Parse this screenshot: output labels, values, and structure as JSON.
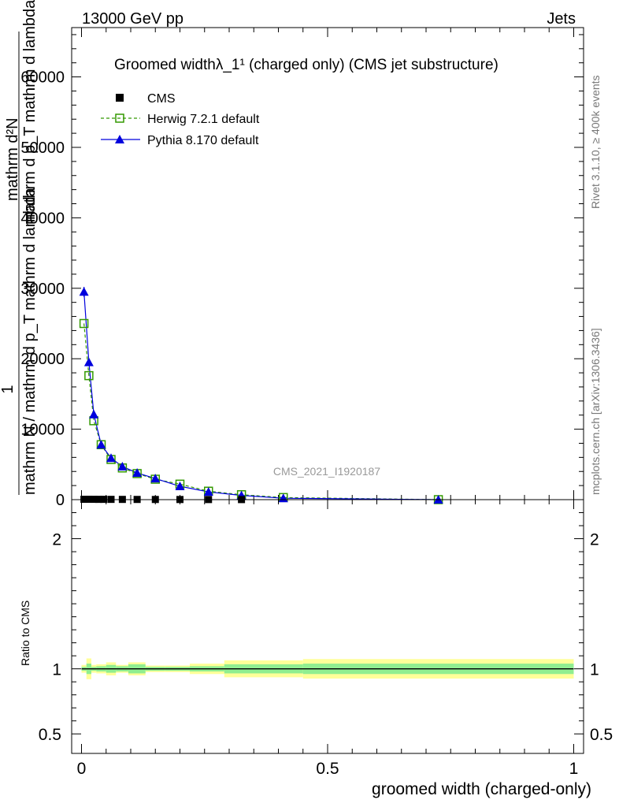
{
  "header": {
    "left": "13000 GeV pp",
    "right": "Jets"
  },
  "side_labels": {
    "rivet": "Rivet 3.1.10, ≥ 400k events",
    "site": "mcplots.cern.ch [arXiv:1306.3436]"
  },
  "watermark": "CMS_2021_I1920187",
  "colors": {
    "cms": "#000000",
    "herwig": "#339900",
    "pythia": "#0000dd",
    "band_outer": "#ffff99",
    "band_inner": "#90ee90"
  },
  "chart_data": [
    {
      "type": "scatter",
      "panel": "main",
      "title": "Groomed widthλ_1¹ (charged only) (CMS jet substructure)",
      "ylabel_line1": "1",
      "ylabel_line2": "mathrm N / mathrm d p_T mathrm d lambda",
      "ylabel_line3": "mathrm d²N",
      "ylabel_line4": "mathrm d p_T mathrm d lambda",
      "xlim": [
        -0.02,
        1.02
      ],
      "ylim": [
        0,
        67000
      ],
      "yticks": [
        0,
        10000,
        20000,
        30000,
        40000,
        50000,
        60000
      ],
      "ytick_labels": [
        "0",
        "10000",
        "20000",
        "30000",
        "40000",
        "50000",
        "60000"
      ],
      "legend_position": "top-left",
      "series": [
        {
          "name": "CMS",
          "style": "marker",
          "x": [
            0.005,
            0.015,
            0.025,
            0.035,
            0.045,
            0.06,
            0.083,
            0.113,
            0.15,
            0.2,
            0.258,
            0.325
          ],
          "values": [
            50,
            55,
            50,
            45,
            45,
            40,
            35,
            30,
            25,
            20,
            15,
            10
          ]
        },
        {
          "name": "Herwig 7.2.1 default",
          "style": "dashed-open-square",
          "x": [
            0.005,
            0.015,
            0.025,
            0.04,
            0.06,
            0.083,
            0.113,
            0.15,
            0.2,
            0.258,
            0.325,
            0.41,
            0.725
          ],
          "values": [
            25000,
            17600,
            11200,
            7800,
            5700,
            4500,
            3700,
            2900,
            2200,
            1200,
            700,
            300,
            0
          ]
        },
        {
          "name": "Pythia 8.170 default",
          "style": "solid-triangle",
          "x": [
            0.005,
            0.015,
            0.025,
            0.04,
            0.06,
            0.083,
            0.113,
            0.15,
            0.2,
            0.258,
            0.325,
            0.41,
            0.725
          ],
          "values": [
            29500,
            19500,
            12100,
            7800,
            5900,
            4700,
            3800,
            3000,
            1900,
            1100,
            600,
            200,
            0
          ]
        }
      ]
    },
    {
      "type": "area",
      "panel": "ratio",
      "xlabel": "groomed width (charged-only)",
      "ylabel": "Ratio to CMS",
      "xlim": [
        -0.02,
        1.02
      ],
      "ylim": [
        0.35,
        2.3
      ],
      "xticks": [
        0,
        0.5,
        1
      ],
      "xtick_labels": [
        "0",
        "0.5",
        "1"
      ],
      "yticks": [
        0.5,
        1,
        2
      ],
      "ytick_labels": [
        "0.5",
        "1",
        "2"
      ],
      "bins": [
        {
          "x0": 0.0,
          "x1": 0.01,
          "inner": 0.015,
          "outer": 0.03
        },
        {
          "x0": 0.01,
          "x1": 0.02,
          "inner": 0.04,
          "outer": 0.08
        },
        {
          "x0": 0.02,
          "x1": 0.03,
          "inner": 0.015,
          "outer": 0.03
        },
        {
          "x0": 0.03,
          "x1": 0.05,
          "inner": 0.02,
          "outer": 0.035
        },
        {
          "x0": 0.05,
          "x1": 0.07,
          "inner": 0.03,
          "outer": 0.05
        },
        {
          "x0": 0.07,
          "x1": 0.095,
          "inner": 0.02,
          "outer": 0.03
        },
        {
          "x0": 0.095,
          "x1": 0.13,
          "inner": 0.035,
          "outer": 0.05
        },
        {
          "x0": 0.13,
          "x1": 0.17,
          "inner": 0.015,
          "outer": 0.025
        },
        {
          "x0": 0.17,
          "x1": 0.22,
          "inner": 0.015,
          "outer": 0.025
        },
        {
          "x0": 0.22,
          "x1": 0.29,
          "inner": 0.02,
          "outer": 0.04
        },
        {
          "x0": 0.29,
          "x1": 0.45,
          "inner": 0.035,
          "outer": 0.065
        },
        {
          "x0": 0.45,
          "x1": 1.0,
          "inner": 0.04,
          "outer": 0.075
        }
      ],
      "reference_line": 1.0
    }
  ]
}
